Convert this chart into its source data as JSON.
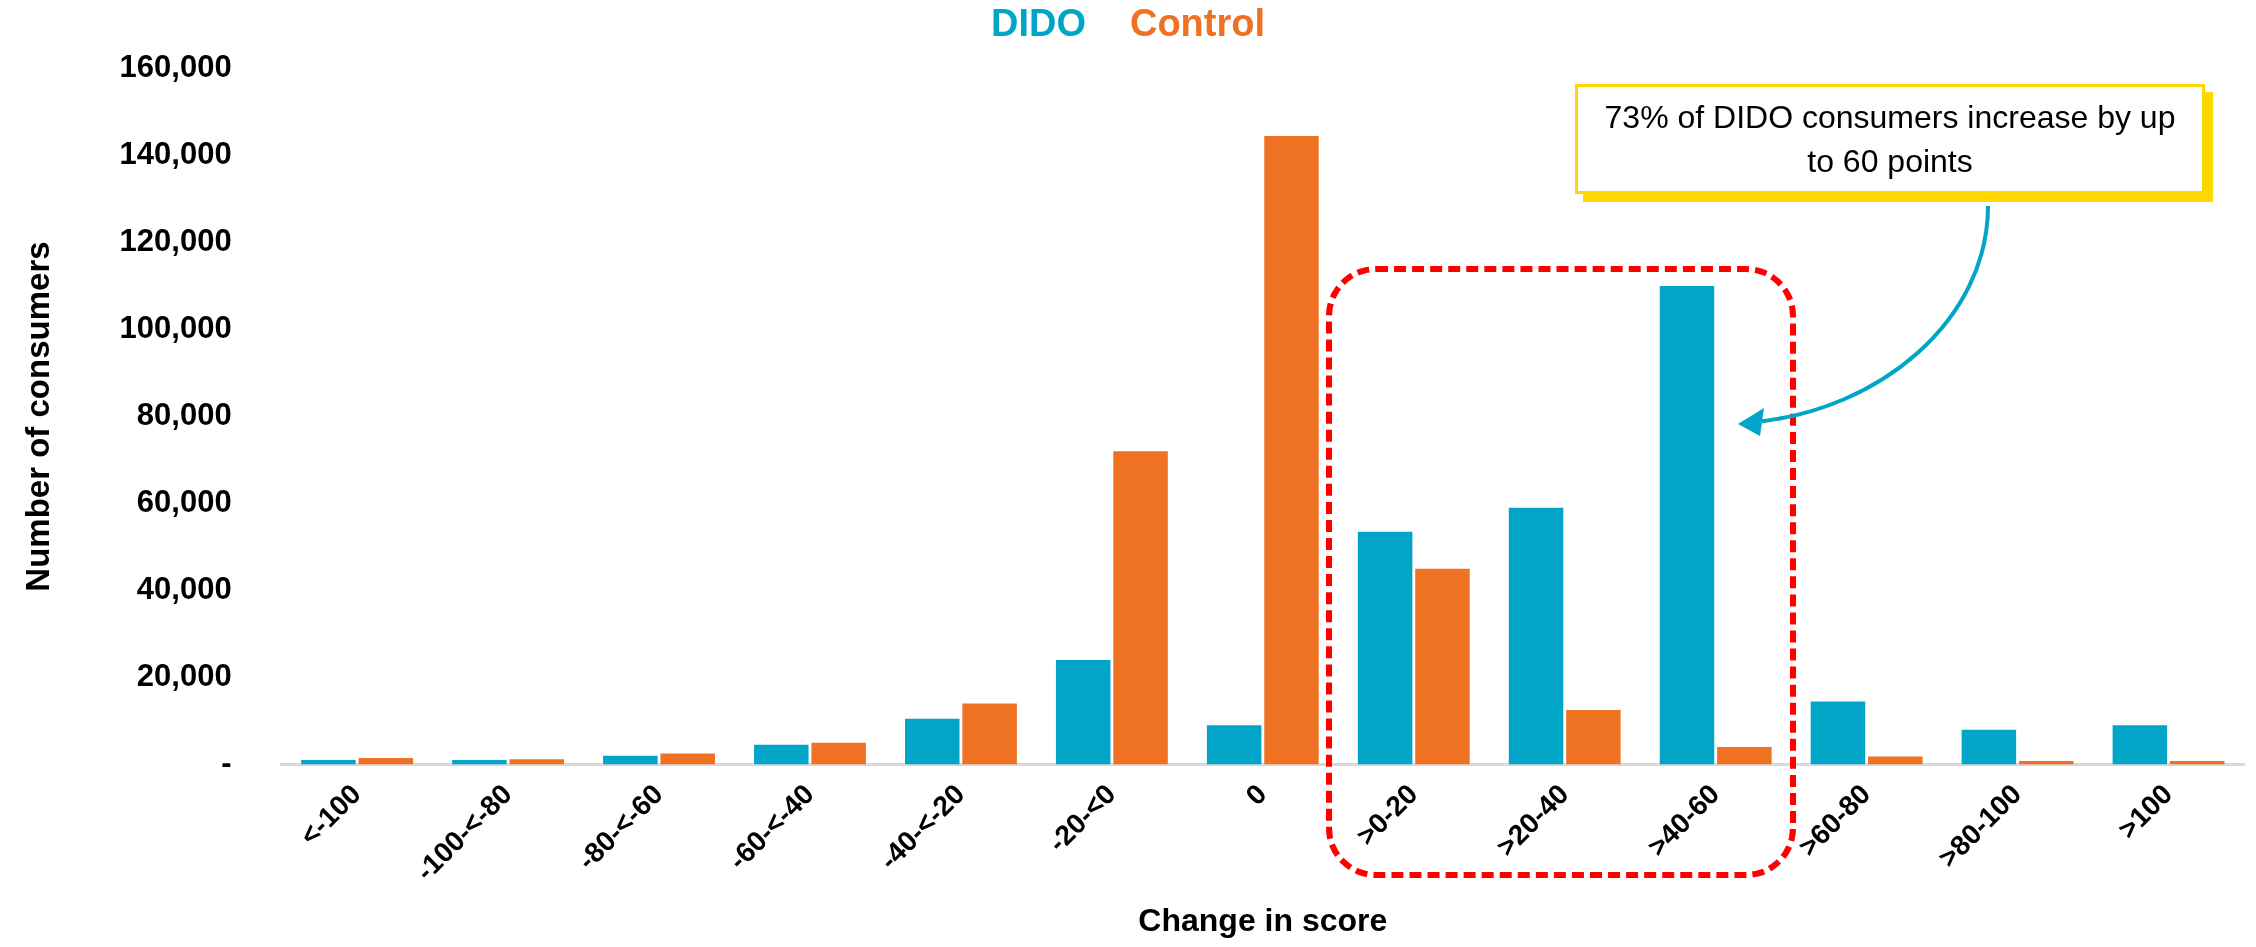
{
  "chart_data": {
    "type": "bar",
    "xlabel": "Change in score",
    "ylabel": "Number of consumers",
    "categories": [
      "<-100",
      "-100-<-80",
      "-80-<-60",
      "-60-<-40",
      "-40-<-20",
      "-20-<0",
      "0",
      ">0-20",
      ">20-40",
      ">40-60",
      ">60-80",
      ">80-100",
      ">100"
    ],
    "series": [
      {
        "name": "DIDO",
        "color": "#00a5c8",
        "values": [
          1000,
          1000,
          2000,
          4500,
          10500,
          24000,
          9000,
          53500,
          59000,
          110000,
          14500,
          8000,
          9000
        ]
      },
      {
        "name": "Control",
        "color": "#ef7122",
        "values": [
          1500,
          1200,
          2500,
          5000,
          14000,
          72000,
          144500,
          45000,
          12500,
          4000,
          1800,
          800,
          800
        ]
      }
    ],
    "ylim": [
      0,
      160000
    ],
    "yticks": [
      {
        "value": 0,
        "label": "-"
      },
      {
        "value": 20000,
        "label": "20,000"
      },
      {
        "value": 40000,
        "label": "40,000"
      },
      {
        "value": 60000,
        "label": "60,000"
      },
      {
        "value": 80000,
        "label": "80,000"
      },
      {
        "value": 100000,
        "label": "100,000"
      },
      {
        "value": 120000,
        "label": "120,000"
      },
      {
        "value": 140000,
        "label": "140,000"
      },
      {
        "value": 160000,
        "label": "160,000"
      }
    ],
    "grid": false,
    "legend": "top",
    "annotations": [
      "73% of DIDO consumers increase by up to 60 points"
    ]
  }
}
